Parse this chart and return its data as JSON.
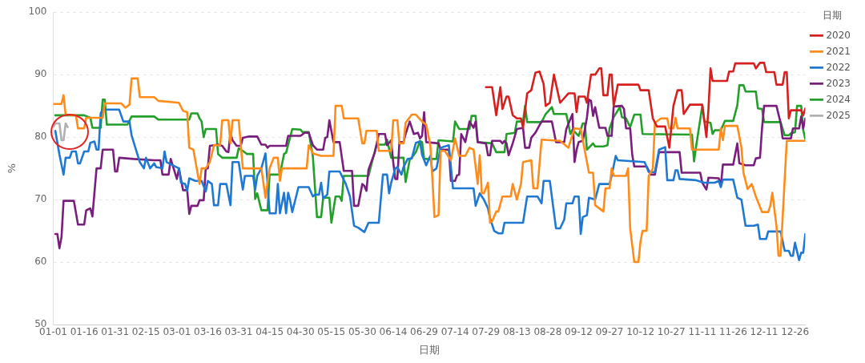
{
  "chart_data": {
    "type": "line",
    "xlabel": "日期",
    "ylabel": "%",
    "legend_title": "日期",
    "grid": "y",
    "legend": "right",
    "marker": "none",
    "line_style": "solid",
    "xlim": [
      "--01-01",
      "--12-31"
    ],
    "xticks": [
      {
        "value": "--01-01",
        "label": "01-01"
      },
      {
        "value": "--01-16",
        "label": "01-16"
      },
      {
        "value": "--01-31",
        "label": "01-31"
      },
      {
        "value": "--02-15",
        "label": "02-15"
      },
      {
        "value": "--03-01",
        "label": "03-01"
      },
      {
        "value": "--03-16",
        "label": "03-16"
      },
      {
        "value": "--03-31",
        "label": "03-31"
      },
      {
        "value": "--04-15",
        "label": "04-15"
      },
      {
        "value": "--04-30",
        "label": "04-30"
      },
      {
        "value": "--05-15",
        "label": "05-15"
      },
      {
        "value": "--05-30",
        "label": "05-30"
      },
      {
        "value": "--06-14",
        "label": "06-14"
      },
      {
        "value": "--06-29",
        "label": "06-29"
      },
      {
        "value": "--07-14",
        "label": "07-14"
      },
      {
        "value": "--07-29",
        "label": "07-29"
      },
      {
        "value": "--08-13",
        "label": "08-13"
      },
      {
        "value": "--08-28",
        "label": "08-28"
      },
      {
        "value": "--09-12",
        "label": "09-12"
      },
      {
        "value": "--09-27",
        "label": "09-27"
      },
      {
        "value": "--10-12",
        "label": "10-12"
      },
      {
        "value": "--10-27",
        "label": "10-27"
      },
      {
        "value": "--11-11",
        "label": "11-11"
      },
      {
        "value": "--11-26",
        "label": "11-26"
      },
      {
        "value": "--12-11",
        "label": "12-11"
      },
      {
        "value": "--12-26",
        "label": "12-26"
      }
    ],
    "ylim": [
      50,
      100
    ],
    "yticks": [
      50,
      60,
      70,
      80,
      90,
      100
    ],
    "series": [
      {
        "name": "2020",
        "color": "#d62020",
        "x": [
          "--07-29",
          "--08-01",
          "--08-03",
          "--08-05",
          "--08-06",
          "--08-08",
          "--08-09",
          "--08-11",
          "--08-13",
          "--08-15",
          "--08-16",
          "--08-18",
          "--08-20",
          "--08-22",
          "--08-24",
          "--08-26",
          "--08-27",
          "--08-29",
          "--08-31",
          "--09-01",
          "--09-03",
          "--09-07",
          "--09-10",
          "--09-11",
          "--09-12",
          "--09-15",
          "--09-16",
          "--09-18",
          "--09-20",
          "--09-22",
          "--09-23",
          "--09-24",
          "--09-26",
          "--09-27",
          "--09-28",
          "--09-29",
          "--10-01",
          "--10-11",
          "--10-12",
          "--10-16",
          "--10-18",
          "--10-20",
          "--10-24",
          "--10-26",
          "--10-28",
          "--10-30",
          "--11-01",
          "--11-02",
          "--11-05",
          "--11-11",
          "--11-13",
          "--11-14",
          "--11-15",
          "--11-16",
          "--11-23",
          "--11-24",
          "--11-26",
          "--11-27",
          "--12-06",
          "--12-07",
          "--12-09",
          "--12-11",
          "--12-12",
          "--12-16",
          "--12-17",
          "--12-20",
          "--12-21",
          "--12-22",
          "--12-23",
          "--12-24",
          "--12-29",
          "--12-30",
          "--12-31"
        ],
        "values": [
          88,
          88,
          83.5,
          88,
          84.5,
          86.5,
          86.5,
          83.5,
          83,
          83,
          81.5,
          87,
          87.5,
          90.3,
          90.5,
          88.5,
          85,
          85.5,
          90,
          88.5,
          85.5,
          87,
          87,
          84,
          86.5,
          86.5,
          85.5,
          90,
          90,
          91,
          91,
          86.7,
          86.7,
          90,
          90,
          85,
          88.4,
          88.4,
          87.5,
          87.5,
          83,
          81.7,
          81.7,
          78.3,
          85,
          87.5,
          87.5,
          83.7,
          85.2,
          85.2,
          80,
          84.5,
          91,
          89,
          89,
          90.5,
          90.5,
          91.8,
          91.8,
          91,
          91.9,
          91.9,
          90.4,
          90.4,
          88.4,
          88.4,
          90.4,
          90.4,
          83,
          84.3,
          84.3,
          83.5,
          84.6
        ]
      },
      {
        "name": "2021",
        "color": "#ff8c1a",
        "x": [
          "--01-01",
          "--01-05",
          "--01-06",
          "--01-07",
          "--01-12",
          "--01-13",
          "--01-16",
          "--01-17",
          "--01-25",
          "--01-26",
          "--02-03",
          "--02-05",
          "--02-07",
          "--02-08",
          "--02-11",
          "--02-12",
          "--02-19",
          "--02-21",
          "--03-02",
          "--03-04",
          "--03-06",
          "--03-07",
          "--03-09",
          "--03-12",
          "--03-13",
          "--03-15",
          "--03-17",
          "--03-19",
          "--03-22",
          "--03-23",
          "--03-26",
          "--03-27",
          "--03-28",
          "--03-31",
          "--04-02",
          "--04-11",
          "--04-13",
          "--04-15",
          "--04-17",
          "--04-19",
          "--04-20",
          "--04-21",
          "--05-03",
          "--05-04",
          "--05-06",
          "--05-10",
          "--05-16",
          "--05-17",
          "--05-20",
          "--05-21",
          "--05-28",
          "--05-30",
          "--05-31",
          "--06-01",
          "--06-06",
          "--06-07",
          "--06-13",
          "--06-14",
          "--06-16",
          "--06-17",
          "--06-19",
          "--06-20",
          "--06-23",
          "--06-25",
          "--06-28",
          "--06-30",
          "--07-02",
          "--07-03",
          "--07-04",
          "--07-06",
          "--07-07",
          "--07-09",
          "--07-12",
          "--07-14",
          "--07-16",
          "--07-19",
          "--07-21",
          "--07-23",
          "--07-25",
          "--07-26",
          "--07-27",
          "--07-28",
          "--07-30",
          "--07-31",
          "--08-01",
          "--08-03",
          "--08-04",
          "--08-06",
          "--08-10",
          "--08-11",
          "--08-13",
          "--08-15",
          "--08-16",
          "--08-20",
          "--08-21",
          "--08-23",
          "--08-25",
          "--09-03",
          "--09-07",
          "--09-10",
          "--09-13",
          "--09-15",
          "--09-17",
          "--09-19",
          "--09-20",
          "--09-24",
          "--09-25",
          "--09-27",
          "--09-28",
          "--09-29",
          "--10-05",
          "--10-06",
          "--10-07",
          "--10-09",
          "--10-11",
          "--10-12",
          "--10-13",
          "--10-15",
          "--10-16",
          "--10-18",
          "--10-19",
          "--10-22",
          "--10-25",
          "--10-26",
          "--10-28",
          "--10-29",
          "--10-30",
          "--11-05",
          "--11-06",
          "--11-19",
          "--11-20",
          "--11-21",
          "--11-22",
          "--11-28",
          "--11-30",
          "--12-01",
          "--12-03",
          "--12-05",
          "--12-07",
          "--12-10",
          "--12-13",
          "--12-14",
          "--12-15",
          "--12-17",
          "--12-18",
          "--12-19",
          "--12-22",
          "--12-31"
        ],
        "values": [
          85.3,
          85.3,
          86.7,
          83.6,
          83.5,
          81.4,
          81.4,
          83.1,
          83.1,
          85.4,
          85.4,
          84.7,
          85.2,
          89.4,
          89.4,
          86.4,
          86.4,
          85.8,
          85.5,
          84.2,
          84,
          78.3,
          78,
          72.5,
          75,
          75,
          76,
          78.7,
          78.7,
          82.7,
          82.7,
          79,
          82.7,
          82.7,
          75,
          75,
          70.3,
          75,
          76.7,
          76.7,
          73,
          75,
          75,
          78.7,
          77.4,
          77,
          77,
          85,
          85,
          83,
          83,
          79,
          79,
          81,
          81,
          77.8,
          77.8,
          82.7,
          82.7,
          79,
          79,
          82.3,
          83.6,
          83.6,
          82.5,
          82,
          78.7,
          73.4,
          67.2,
          67.5,
          77.8,
          77.8,
          76.3,
          79.8,
          77,
          77,
          78.3,
          78,
          72.5,
          77.1,
          71,
          71,
          72.7,
          66.3,
          66.5,
          68.1,
          68.1,
          70.5,
          70.5,
          72.5,
          70,
          72.5,
          76,
          76.3,
          71.8,
          71.8,
          79.6,
          79.4,
          78.3,
          81.4,
          81.3,
          77.8,
          74.3,
          74.3,
          69.1,
          68.1,
          71.8,
          71.8,
          75,
          73.8,
          73.8,
          75,
          65.4,
          60,
          60,
          63.2,
          65,
          65,
          73.8,
          75,
          82.3,
          83,
          83,
          81.4,
          81.4,
          83.1,
          81.4,
          81.4,
          78,
          78,
          81.4,
          79.5,
          81.8,
          81.8,
          78.3,
          74.3,
          71.7,
          72.5,
          70.5,
          68,
          68,
          69,
          71.1,
          65.8,
          61,
          61,
          79.4,
          79.4
        ]
      },
      {
        "name": "2022",
        "color": "#1f78d1",
        "x": [
          "--01-02",
          "--01-04",
          "--01-06",
          "--01-07",
          "--01-09",
          "--01-10",
          "--01-12",
          "--01-13",
          "--01-14",
          "--01-16",
          "--01-18",
          "--01-19",
          "--01-21",
          "--01-22",
          "--01-23",
          "--01-24",
          "--01-25",
          "--02-02",
          "--02-04",
          "--02-07",
          "--02-08",
          "--02-12",
          "--02-14",
          "--02-15",
          "--02-17",
          "--02-19",
          "--02-20",
          "--02-23",
          "--02-24",
          "--02-25",
          "--03-02",
          "--03-03",
          "--03-05",
          "--03-06",
          "--03-07",
          "--03-10",
          "--03-13",
          "--03-15",
          "--03-16",
          "--03-18",
          "--03-19",
          "--03-21",
          "--03-22",
          "--03-25",
          "--03-27",
          "--03-28",
          "--03-31",
          "--04-02",
          "--04-03",
          "--04-07",
          "--04-08",
          "--04-09",
          "--04-11",
          "--04-13",
          "--04-15",
          "--04-18",
          "--04-19",
          "--04-20",
          "--04-22",
          "--04-23",
          "--04-24",
          "--04-25",
          "--04-26",
          "--04-29",
          "--05-04",
          "--05-06",
          "--05-07",
          "--05-09",
          "--05-10",
          "--05-11",
          "--05-13",
          "--05-14",
          "--05-19",
          "--05-22",
          "--05-24",
          "--05-26",
          "--05-28",
          "--05-31",
          "--06-02",
          "--06-07",
          "--06-09",
          "--06-11",
          "--06-12",
          "--06-13",
          "--06-15",
          "--06-16",
          "--06-18",
          "--06-19",
          "--06-21",
          "--06-23",
          "--06-25",
          "--06-27",
          "--06-28",
          "--06-30",
          "--07-02",
          "--07-03",
          "--07-05",
          "--07-07",
          "--07-11",
          "--07-13",
          "--07-23",
          "--07-24",
          "--07-26",
          "--07-28",
          "--07-30",
          "--07-31",
          "--08-02",
          "--08-04",
          "--08-06",
          "--08-07",
          "--08-16",
          "--08-18",
          "--08-23",
          "--08-25",
          "--08-26",
          "--08-29",
          "--09-01",
          "--09-03",
          "--09-05",
          "--09-06",
          "--09-09",
          "--09-10",
          "--09-12",
          "--09-13",
          "--09-14",
          "--09-16",
          "--09-17",
          "--09-20",
          "--09-22",
          "--09-27",
          "--09-28",
          "--09-30",
          "--10-01",
          "--10-14",
          "--10-16",
          "--10-19",
          "--10-21",
          "--10-24",
          "--10-25",
          "--10-28",
          "--10-29",
          "--10-30",
          "--10-31",
          "--11-08",
          "--11-12",
          "--11-17",
          "--11-19",
          "--11-20",
          "--11-21",
          "--11-26",
          "--11-28",
          "--11-30",
          "--12-02",
          "--12-06",
          "--12-08",
          "--12-09",
          "--12-12",
          "--12-13",
          "--12-19",
          "--12-21",
          "--12-23",
          "--12-24",
          "--12-25",
          "--12-26",
          "--12-28",
          "--12-29",
          "--12-30",
          "--12-31"
        ],
        "values": [
          81,
          77.2,
          74,
          76.7,
          76.7,
          77.7,
          77.7,
          75.8,
          75.8,
          77.7,
          77.7,
          79.1,
          79.3,
          78,
          78,
          83.8,
          84.4,
          84.4,
          82.5,
          82.5,
          80.3,
          76,
          75,
          76.7,
          75,
          75.8,
          75.2,
          75,
          77.7,
          76,
          75,
          72.7,
          72.5,
          71.4,
          73.4,
          73,
          73,
          71.3,
          73,
          72.5,
          69.1,
          69.1,
          72.5,
          72.5,
          69.1,
          76,
          76,
          71.6,
          73.8,
          73.8,
          71.6,
          73.8,
          75,
          77.4,
          67.8,
          67.8,
          72.5,
          67.8,
          71.1,
          67.8,
          71.1,
          69.8,
          68,
          72,
          72,
          70.5,
          70.8,
          70.8,
          72.7,
          70.2,
          70.8,
          74.5,
          74.5,
          72.5,
          70.5,
          65.8,
          65.5,
          64.8,
          66.3,
          66.3,
          74,
          74,
          71,
          72.7,
          75,
          75.2,
          74,
          75.2,
          76.5,
          76.6,
          79.1,
          79.3,
          77.2,
          75.5,
          77,
          74.5,
          75,
          78.3,
          78.7,
          71.8,
          71.8,
          69,
          71,
          70,
          68.6,
          67,
          65,
          64.6,
          64.6,
          66.3,
          66.3,
          70.5,
          70.5,
          69.4,
          73,
          73,
          65.4,
          65.4,
          66.8,
          69.4,
          69.4,
          70.5,
          70.5,
          64.5,
          67.2,
          67.5,
          70.3,
          70,
          72.5,
          72.5,
          73.8,
          77,
          76.3,
          76,
          74.4,
          74.4,
          78,
          78.4,
          73.1,
          73.1,
          74.7,
          74.7,
          73.3,
          73.1,
          72.7,
          72.7,
          73,
          72,
          73.2,
          73.2,
          70.3,
          70,
          65.8,
          65.8,
          66,
          63.7,
          63.7,
          64.9,
          64.9,
          61.8,
          61.8,
          61,
          61,
          63.1,
          60.3,
          61.5,
          61.5,
          64.5
        ]
      },
      {
        "name": "2023",
        "color": "#7a1e7e",
        "x": [
          "--01-02",
          "--01-03",
          "--01-04",
          "--01-05",
          "--01-06",
          "--01-11",
          "--01-13",
          "--01-16",
          "--01-17",
          "--01-19",
          "--01-20",
          "--01-22",
          "--01-24",
          "--01-25",
          "--01-30",
          "--01-31",
          "--02-01",
          "--02-02",
          "--02-09",
          "--02-19",
          "--02-22",
          "--02-23",
          "--02-26",
          "--02-27",
          "--03-01",
          "--03-02",
          "--03-04",
          "--03-06",
          "--03-07",
          "--03-08",
          "--03-11",
          "--03-12",
          "--03-14",
          "--03-15",
          "--03-16",
          "--03-17",
          "--03-21",
          "--03-23",
          "--03-25",
          "--03-26",
          "--03-27",
          "--03-28",
          "--03-30",
          "--04-01",
          "--04-02",
          "--04-05",
          "--04-09",
          "--04-11",
          "--04-13",
          "--04-14",
          "--04-15",
          "--04-23",
          "--04-24",
          "--04-30",
          "--05-02",
          "--05-04",
          "--05-06",
          "--05-08",
          "--05-11",
          "--05-12",
          "--05-13",
          "--05-14",
          "--05-16",
          "--05-19",
          "--05-21",
          "--05-25",
          "--05-26",
          "--05-28",
          "--05-30",
          "--05-31",
          "--06-01",
          "--06-02",
          "--06-05",
          "--06-07",
          "--06-10",
          "--06-11",
          "--06-13",
          "--06-14",
          "--06-15",
          "--06-16",
          "--06-17",
          "--06-19",
          "--06-20",
          "--06-22",
          "--06-24",
          "--06-26",
          "--06-27",
          "--06-28",
          "--06-29",
          "--06-30",
          "--07-06",
          "--07-07",
          "--07-11",
          "--07-12",
          "--07-14",
          "--07-15",
          "--07-16",
          "--07-17",
          "--07-19",
          "--07-21",
          "--07-23",
          "--07-24",
          "--07-25",
          "--07-29",
          "--07-30",
          "--07-31",
          "--08-01",
          "--08-05",
          "--08-06",
          "--08-07",
          "--08-08",
          "--08-09",
          "--08-11",
          "--08-13",
          "--08-16",
          "--08-17",
          "--08-19",
          "--08-20",
          "--08-22",
          "--08-25",
          "--08-30",
          "--09-01",
          "--09-05",
          "--09-06",
          "--09-09",
          "--09-10",
          "--09-11",
          "--09-12",
          "--09-14",
          "--09-16",
          "--09-17",
          "--09-18",
          "--09-19",
          "--09-20",
          "--09-22",
          "--09-25",
          "--09-26",
          "--09-28",
          "--09-29",
          "--10-03",
          "--10-04",
          "--10-05",
          "--10-07",
          "--10-08",
          "--10-09",
          "--10-15",
          "--10-17",
          "--10-19",
          "--10-21",
          "--10-31",
          "--11-01",
          "--11-10",
          "--11-11",
          "--11-13",
          "--11-14",
          "--11-19",
          "--11-20",
          "--11-21",
          "--11-26",
          "--11-28",
          "--11-29",
          "--12-02",
          "--12-06",
          "--12-07",
          "--12-09",
          "--12-10",
          "--12-11",
          "--12-17",
          "--12-19",
          "--12-20",
          "--12-24",
          "--12-25",
          "--12-28",
          "--12-29",
          "--12-30",
          "--12-31"
        ],
        "values": [
          64.5,
          64.5,
          62.2,
          64,
          69.8,
          69.8,
          66,
          66,
          68.3,
          68.6,
          67.3,
          75,
          75,
          78,
          78,
          74.5,
          74.5,
          76.7,
          76.5,
          76.3,
          76.3,
          74,
          74,
          76.5,
          73.3,
          75,
          71.5,
          71.5,
          67.7,
          69,
          69,
          69.9,
          69.9,
          75,
          75,
          78.6,
          78.8,
          78.6,
          77.7,
          77.6,
          80.7,
          79.5,
          78.6,
          78.6,
          79.9,
          80.1,
          80.1,
          78.8,
          78.8,
          78.3,
          78.6,
          78.6,
          80.2,
          80.2,
          80.7,
          80.7,
          78.7,
          78,
          78,
          79.9,
          80,
          82.7,
          79.2,
          79.2,
          74.6,
          74.6,
          69,
          69,
          72.5,
          72.2,
          71.4,
          74.8,
          77.5,
          80.5,
          80.5,
          78.7,
          79.5,
          76,
          73.3,
          73.3,
          79.2,
          79.2,
          80.5,
          82.5,
          80.5,
          80.7,
          79.8,
          80.2,
          84,
          79.2,
          79,
          78,
          78,
          73,
          73,
          73.9,
          74,
          80.5,
          79.2,
          82.5,
          81.5,
          82.5,
          79.2,
          79,
          77.1,
          77.1,
          79.4,
          79.4,
          79,
          79.4,
          79,
          77.1,
          79,
          81.3,
          81.5,
          78.3,
          78.3,
          79.9,
          80.7,
          82.5,
          82.5,
          79.2,
          79.2,
          81.3,
          83.7,
          76,
          78,
          79.2,
          79.4,
          83.1,
          86,
          85.8,
          83.4,
          84.8,
          81.5,
          81.5,
          80.2,
          80.2,
          84.9,
          85,
          84.5,
          81.4,
          81.4,
          77.2,
          75.3,
          75.3,
          74,
          74,
          77.6,
          77.6,
          74.3,
          74.3,
          72.7,
          71.6,
          73.5,
          73.4,
          72.2,
          75.6,
          75.6,
          79,
          75.8,
          75.5,
          75.5,
          76.6,
          76.7,
          81.4,
          85,
          85,
          82.3,
          79.8,
          79.8,
          81.4,
          81.4,
          83.3,
          81.4,
          83
        ]
      },
      {
        "name": "2024",
        "color": "#22a02a",
        "x": [
          "--01-02",
          "--01-16",
          "--01-19",
          "--01-20",
          "--01-24",
          "--01-25",
          "--01-26",
          "--01-27",
          "--02-06",
          "--02-08",
          "--02-19",
          "--02-21",
          "--03-07",
          "--03-08",
          "--03-11",
          "--03-12",
          "--03-13",
          "--03-14",
          "--03-15",
          "--03-20",
          "--03-21",
          "--03-23",
          "--03-30",
          "--03-31",
          "--04-02",
          "--04-04",
          "--04-07",
          "--04-08",
          "--04-09",
          "--04-11",
          "--04-14",
          "--04-15",
          "--04-20",
          "--04-22",
          "--04-23",
          "--04-26",
          "--04-30",
          "--05-01",
          "--05-04",
          "--05-06",
          "--05-08",
          "--05-10",
          "--05-11",
          "--05-14",
          "--05-15",
          "--05-17",
          "--05-19",
          "--05-20",
          "--05-21",
          "--06-02",
          "--06-04",
          "--06-06",
          "--06-10",
          "--06-11",
          "--06-13",
          "--06-19",
          "--06-20",
          "--06-22",
          "--06-23",
          "--06-25",
          "--06-27",
          "--06-28",
          "--06-29",
          "--07-05",
          "--07-06",
          "--07-13",
          "--07-14",
          "--07-16",
          "--07-21",
          "--07-22",
          "--07-24",
          "--07-25",
          "--08-01",
          "--08-03",
          "--08-07",
          "--08-08",
          "--08-12",
          "--08-13",
          "--08-16",
          "--08-17",
          "--08-18",
          "--08-25",
          "--08-27",
          "--08-30",
          "--08-31",
          "--09-06",
          "--09-08",
          "--09-09",
          "--09-12",
          "--09-14",
          "--09-15",
          "--09-16",
          "--09-19",
          "--09-20",
          "--09-24",
          "--09-26",
          "--09-27",
          "--09-29",
          "--10-02",
          "--10-03",
          "--10-05",
          "--10-07",
          "--10-09",
          "--10-12",
          "--10-13",
          "--11-06",
          "--11-07",
          "--11-08",
          "--11-11",
          "--11-12",
          "--11-15",
          "--11-16",
          "--11-17",
          "--11-20",
          "--11-22",
          "--11-26",
          "--11-28",
          "--11-29",
          "--12-01",
          "--12-02",
          "--12-07",
          "--12-08",
          "--12-10",
          "--12-11",
          "--12-19",
          "--12-21",
          "--12-23",
          "--12-24",
          "--12-26",
          "--12-27",
          "--12-29",
          "--12-30",
          "--12-31"
        ],
        "values": [
          83.5,
          83.5,
          83.1,
          81.5,
          81.5,
          86,
          86,
          82,
          82,
          83.3,
          83.3,
          82.8,
          82.8,
          83.8,
          83.8,
          83,
          82.5,
          80,
          81.3,
          81.3,
          77.3,
          76.7,
          76.7,
          78.2,
          77.8,
          77.3,
          77.3,
          70.1,
          71,
          68.3,
          68.3,
          74,
          74,
          77.3,
          77.5,
          81.3,
          81.2,
          80.8,
          80.8,
          76.9,
          67.2,
          67.2,
          70.3,
          70.3,
          66.3,
          70.5,
          70.5,
          69.8,
          73.8,
          73.8,
          76.4,
          78.8,
          78.8,
          79.6,
          76.7,
          76.7,
          72.8,
          76.4,
          76.7,
          77.6,
          79.4,
          79.2,
          76.5,
          76.5,
          79.5,
          79.3,
          82.5,
          81.3,
          81.3,
          83.4,
          83.4,
          79.2,
          79,
          77.6,
          77.6,
          80.5,
          80.7,
          82.5,
          82.5,
          85,
          82.4,
          82.4,
          83.7,
          84.8,
          83.7,
          83.7,
          80.5,
          81.2,
          80.2,
          82.2,
          82.2,
          78,
          79,
          78.5,
          78.5,
          78.7,
          81.4,
          83.2,
          84.8,
          83.2,
          83,
          81.6,
          83.6,
          83.6,
          80.5,
          80.4,
          76.1,
          78.5,
          85,
          82.5,
          82.3,
          80.5,
          81.1,
          81.1,
          82.6,
          82.6,
          85.1,
          88.3,
          88.3,
          87.3,
          87.3,
          84.6,
          84.5,
          82.4,
          82.4,
          80.3,
          80.3,
          80.6,
          80.8,
          85,
          85,
          81.1,
          79.7
        ]
      },
      {
        "name": "2025",
        "color": "#b0b0b0",
        "x": [
          "--01-01",
          "--01-02",
          "--01-04",
          "--01-05",
          "--01-06",
          "--01-07",
          "--01-08"
        ],
        "values": [
          81.6,
          82.2,
          82.2,
          79.5,
          79.5,
          82.2,
          81.6
        ]
      }
    ]
  }
}
